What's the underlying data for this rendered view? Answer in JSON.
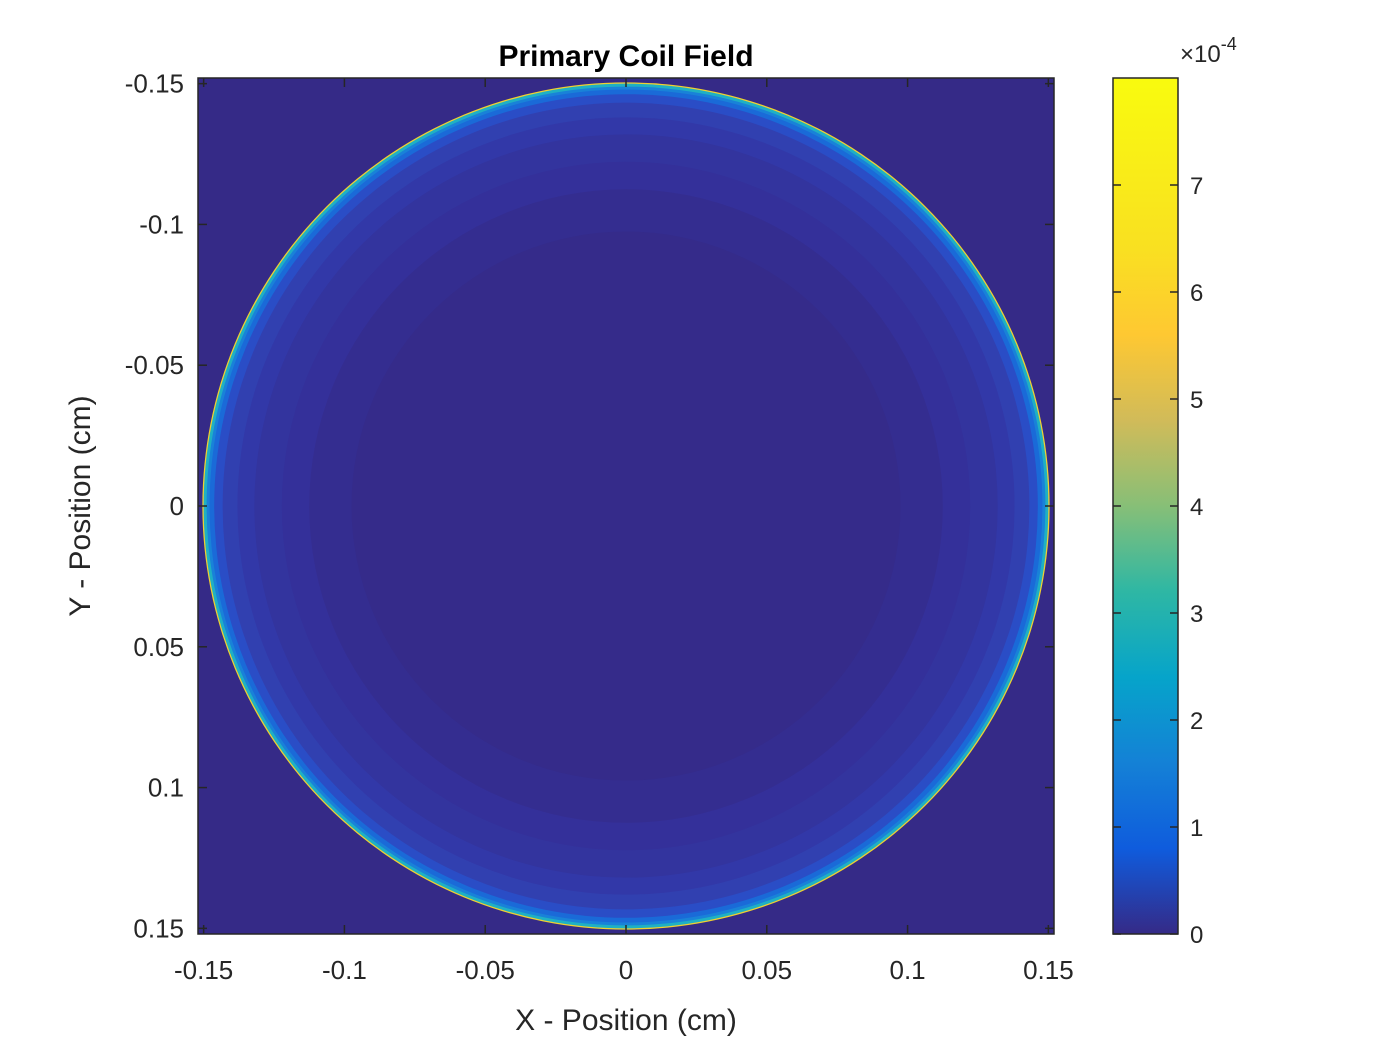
{
  "chart_data": {
    "type": "heatmap",
    "title": "Primary Coil Field",
    "xlabel": "X - Position (cm)",
    "ylabel": "Y - Position (cm)",
    "xlim": [
      -0.152,
      0.152
    ],
    "ylim": [
      -0.152,
      0.152
    ],
    "y_axis_direction": "reversed",
    "xticks": [
      -0.15,
      -0.1,
      -0.05,
      0,
      0.05,
      0.1,
      0.15
    ],
    "xtick_labels": [
      "-0.15",
      "-0.1",
      "-0.05",
      "0",
      "0.05",
      "0.1",
      "0.15"
    ],
    "yticks": [
      -0.15,
      -0.1,
      -0.05,
      0,
      0.05,
      0.1,
      0.15
    ],
    "ytick_labels": [
      "-0.15",
      "-0.1",
      "-0.05",
      "0",
      "0.05",
      "0.1",
      "0.15"
    ],
    "field": {
      "shape": "circular coil",
      "center": [
        0,
        0
      ],
      "coil_radius": 0.15,
      "inner_value": 2e-06,
      "edge_peak_value": 0.0008,
      "outside_value": 0
    },
    "colorbar": {
      "colormap": "parula",
      "clim": [
        0,
        0.0008
      ],
      "ticks": [
        0,
        1,
        2,
        3,
        4,
        5,
        6,
        7
      ],
      "tick_labels": [
        "0",
        "1",
        "2",
        "3",
        "4",
        "5",
        "6",
        "7"
      ],
      "multiplier": "×10",
      "exponent": "-4"
    },
    "grid": false
  }
}
